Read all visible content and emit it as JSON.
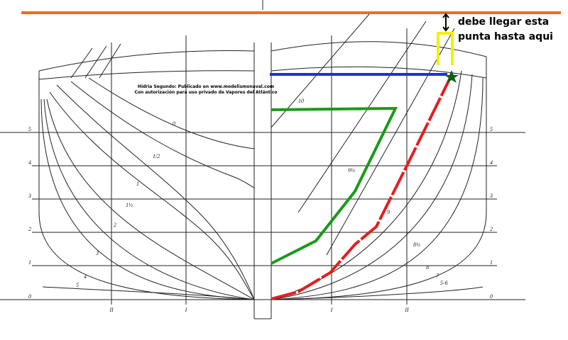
{
  "credit": [
    "Hidria Segundo: Publicado en www.modelismonaval.com",
    "Con autorización para uso privado de Vapores del Atlántico"
  ],
  "annotation": [
    "debe llegar esta",
    "punta hasta aqui"
  ],
  "waterlines_left": [
    "0",
    "1",
    "2",
    "3",
    "4",
    "5"
  ],
  "waterlines_right": [
    "0",
    "1",
    "2",
    "3",
    "4",
    "5"
  ],
  "buttocks": [
    "II",
    "I",
    "I",
    "II"
  ],
  "stations_left": [
    "0",
    "1/2",
    "1",
    "1½",
    "2",
    "3",
    "4",
    "5"
  ],
  "stations_right": [
    "10",
    "9½",
    "9",
    "8½",
    "8",
    "7",
    "5-6"
  ]
}
